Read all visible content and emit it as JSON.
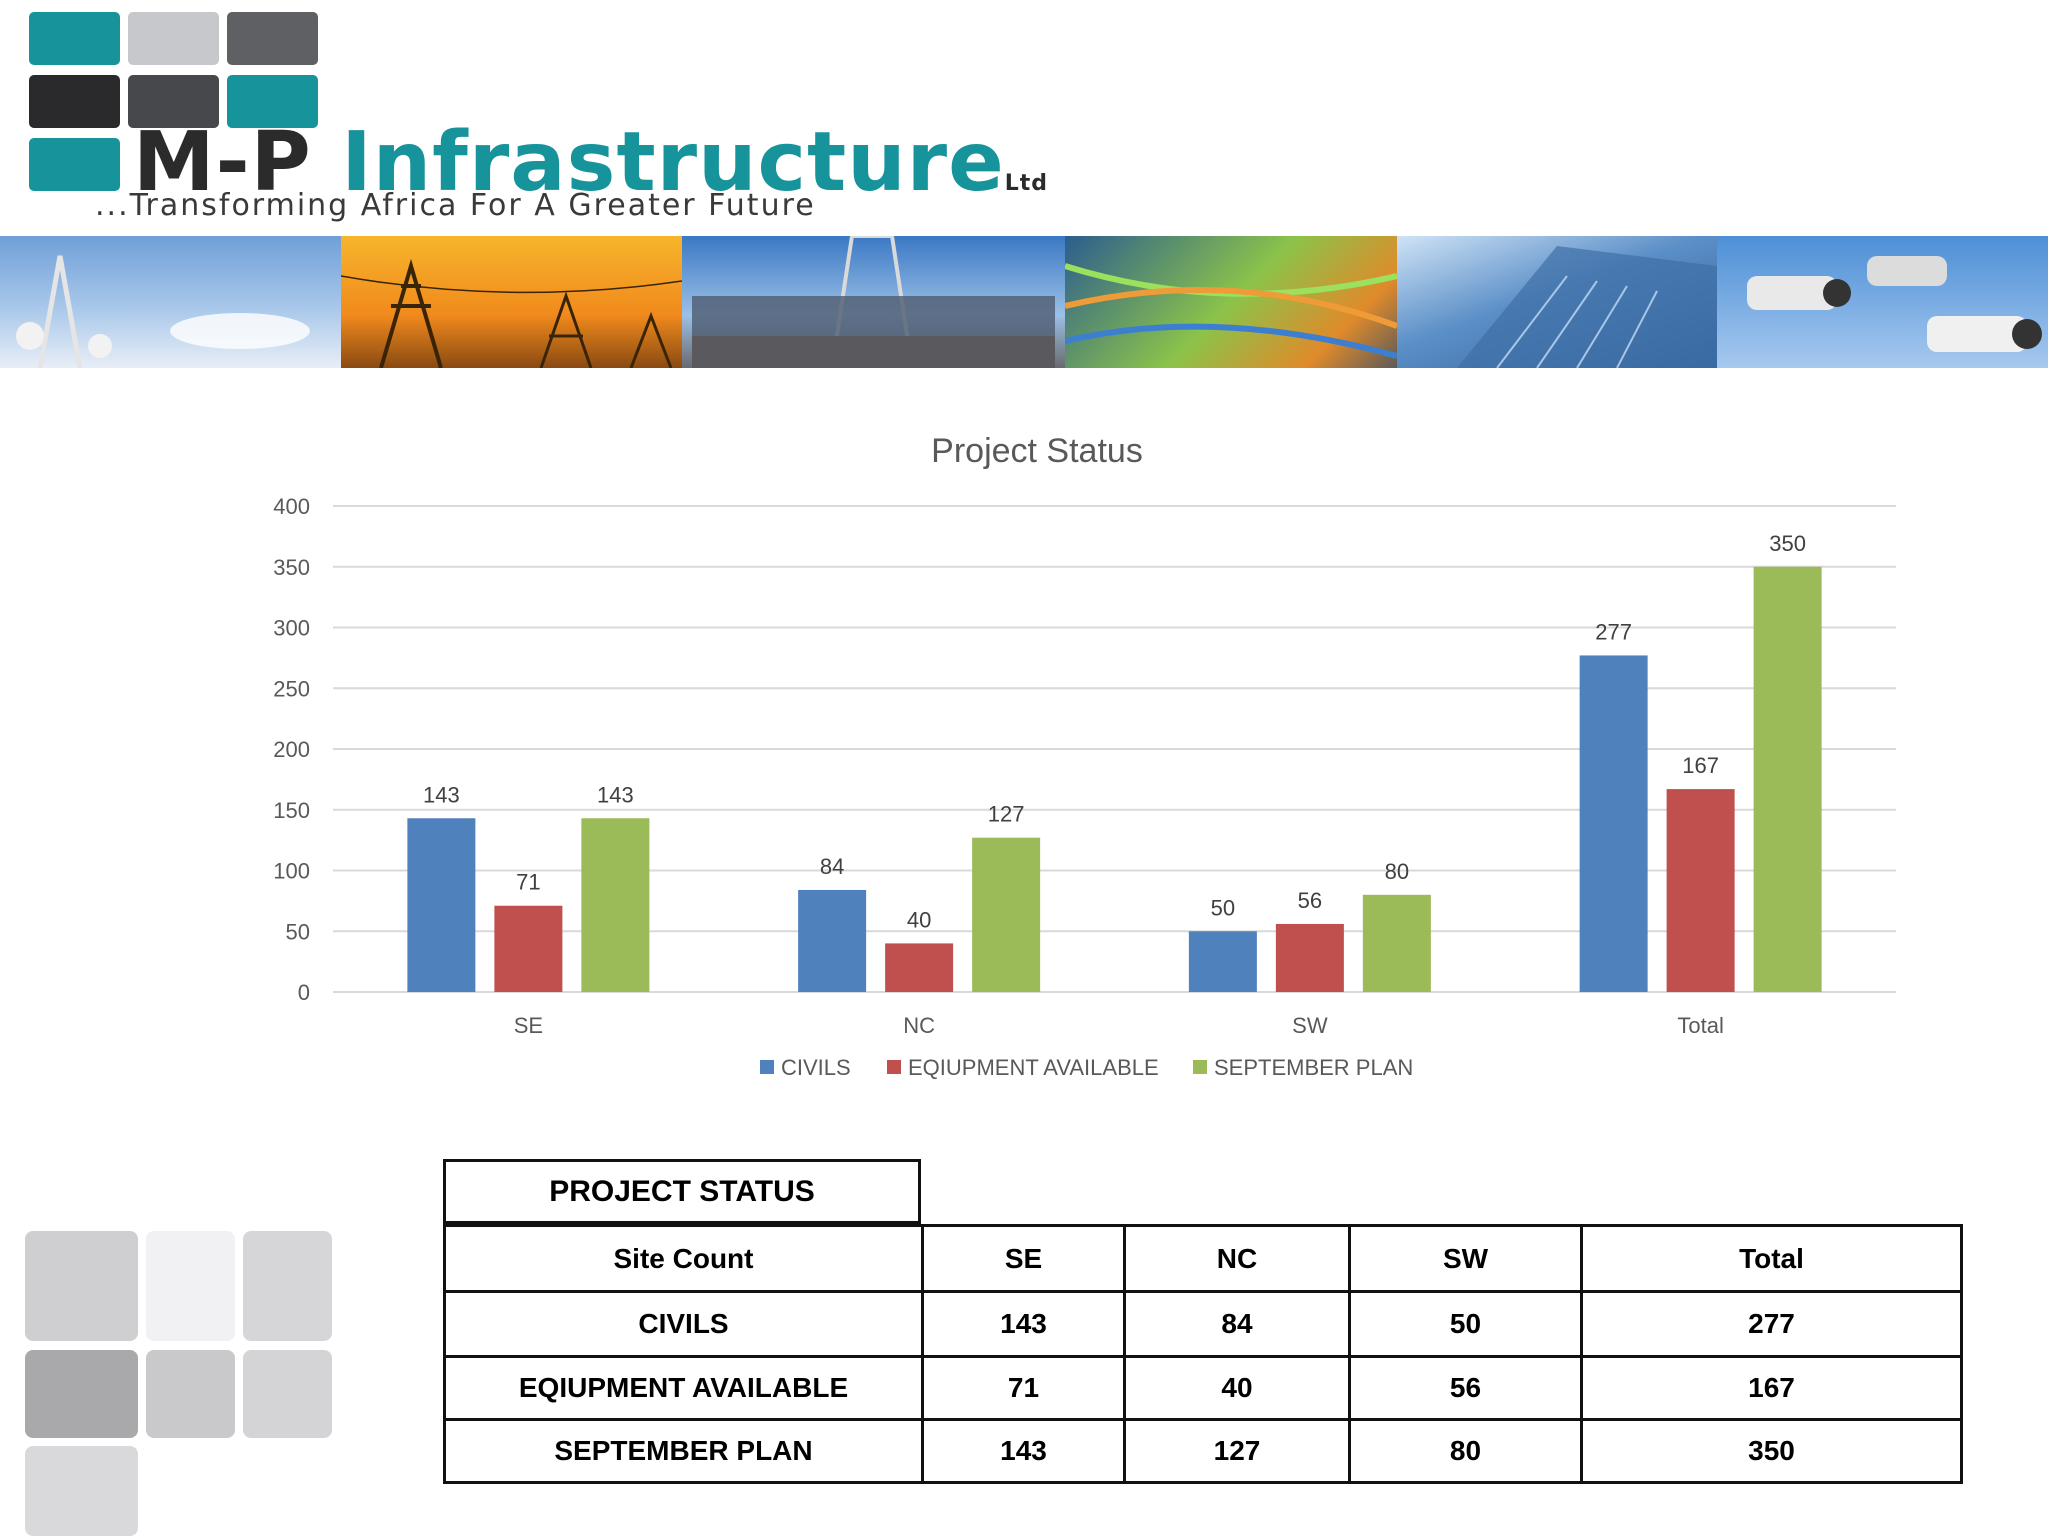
{
  "logo": {
    "name_part1": "M-P",
    "name_part2": "Infrastructure",
    "suffix": "Ltd",
    "tagline": "...Transforming Africa For A Greater Future"
  },
  "colors": {
    "civils": "#4f81bd",
    "equipment": "#c0504d",
    "plan": "#9bbb59",
    "logo_teal": "#17949b"
  },
  "chart_data": {
    "type": "bar",
    "title": "Project Status",
    "categories": [
      "SE",
      "NC",
      "SW",
      "Total"
    ],
    "series": [
      {
        "name": "CIVILS",
        "values": [
          143,
          84,
          50,
          277
        ]
      },
      {
        "name": "EQIUPMENT AVAILABLE",
        "values": [
          71,
          40,
          56,
          167
        ]
      },
      {
        "name": "SEPTEMBER PLAN",
        "values": [
          143,
          127,
          80,
          350
        ]
      }
    ],
    "ylim": [
      0,
      400
    ],
    "yticks": [
      0,
      50,
      100,
      150,
      200,
      250,
      300,
      350,
      400
    ],
    "grid": true,
    "legend": "bottom",
    "data_labels": true
  },
  "table": {
    "title": "PROJECT STATUS",
    "header": [
      "Site Count",
      "SE",
      "NC",
      "SW",
      "Total"
    ],
    "rows": [
      [
        "CIVILS",
        "143",
        "84",
        "50",
        "277"
      ],
      [
        "EQIUPMENT AVAILABLE",
        "71",
        "40",
        "56",
        "167"
      ],
      [
        "SEPTEMBER PLAN",
        "143",
        "127",
        "80",
        "350"
      ]
    ]
  }
}
